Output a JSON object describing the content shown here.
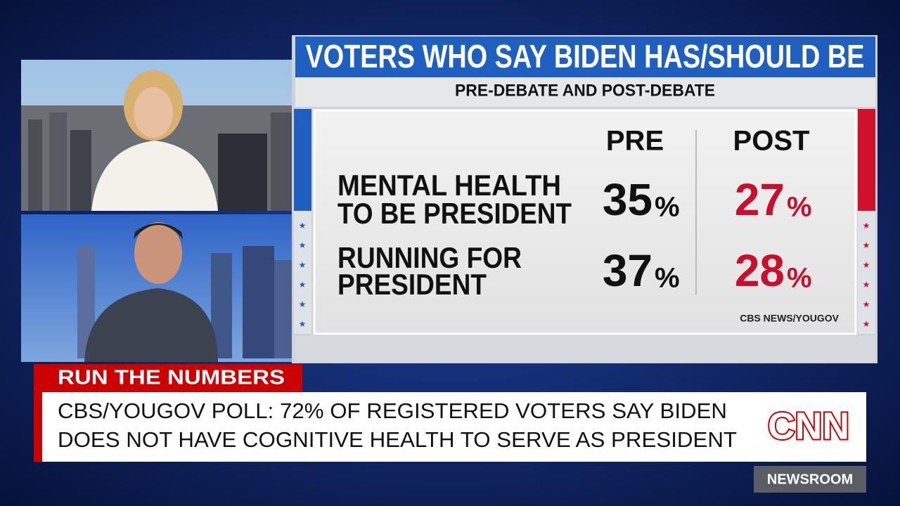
{
  "graphic": {
    "title": "VOTERS WHO SAY BIDEN HAS/SHOULD BE",
    "subtitle": "PRE-DEBATE AND POST-DEBATE",
    "columns": [
      "PRE",
      "POST"
    ],
    "rows": [
      {
        "label": [
          "MENTAL HEALTH",
          "TO BE PRESIDENT"
        ],
        "pre": {
          "number": 35,
          "unit": "%"
        },
        "post": {
          "number": 27,
          "unit": "%"
        }
      },
      {
        "label": [
          "RUNNING FOR",
          "PRESIDENT"
        ],
        "pre": {
          "number": 37,
          "unit": "%"
        },
        "post": {
          "number": 28,
          "unit": "%"
        }
      }
    ],
    "source": "CBS NEWS/YOUGOV"
  },
  "lower_third": {
    "tag": "RUN THE NUMBERS",
    "headline": [
      "CBS/YOUGOV POLL: 72% OF REGISTERED VOTERS SAY BIDEN",
      "DOES NOT HAVE COGNITIVE HEALTH TO SERVE AS PRESIDENT"
    ],
    "logo": "CNN",
    "show": "NEWSROOM"
  }
}
